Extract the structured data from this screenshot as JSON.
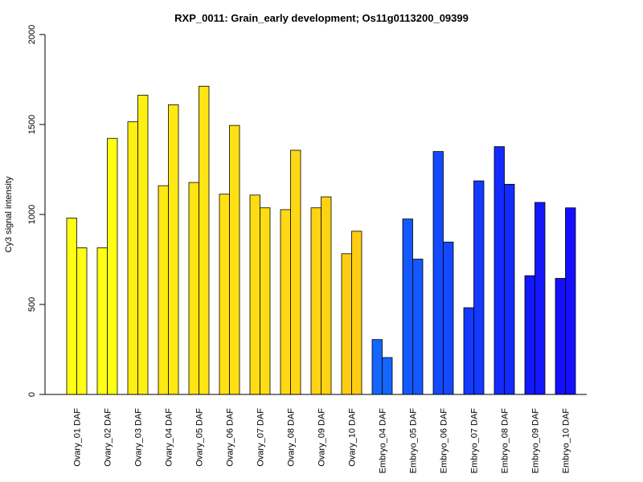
{
  "chart_data": {
    "type": "bar",
    "title": "RXP_0011: Grain_early development; Os11g0113200_09399",
    "xlabel": "",
    "ylabel": "Cy3 signal intensity",
    "ylim": [
      0,
      2000
    ],
    "yticks": [
      0,
      500,
      1000,
      1500,
      2000
    ],
    "grid": false,
    "categories": [
      "Ovary_01 DAF",
      "Ovary_02 DAF",
      "Ovary_03 DAF",
      "Ovary_04 DAF",
      "Ovary_05 DAF",
      "Ovary_06 DAF",
      "Ovary_07 DAF",
      "Ovary_08 DAF",
      "Ovary_09 DAF",
      "Ovary_10 DAF",
      "Embryo_04 DAF",
      "Embryo_05 DAF",
      "Embryo_06 DAF",
      "Embryo_07 DAF",
      "Embryo_08 DAF",
      "Embryo_09 DAF",
      "Embryo_10 DAF"
    ],
    "category_colors": [
      "#ffff14",
      "#ffff14",
      "#fff014",
      "#ffe914",
      "#ffe414",
      "#ffe014",
      "#ffdc14",
      "#ffd814",
      "#ffd214",
      "#ffcc14",
      "#1466ff",
      "#1458ff",
      "#1449ff",
      "#143aff",
      "#142bff",
      "#1418ff",
      "#1410ff"
    ],
    "series": [
      {
        "values": [
          980,
          815,
          1515,
          1160,
          1178,
          1113,
          1108,
          1027,
          1037,
          782,
          305,
          975,
          1350,
          482,
          1377,
          660,
          645
        ]
      },
      {
        "values": [
          815,
          1423,
          1663,
          1610,
          1713,
          1495,
          1037,
          1357,
          1098,
          907,
          205,
          752,
          847,
          1187,
          1168,
          1067,
          1037
        ]
      }
    ]
  }
}
